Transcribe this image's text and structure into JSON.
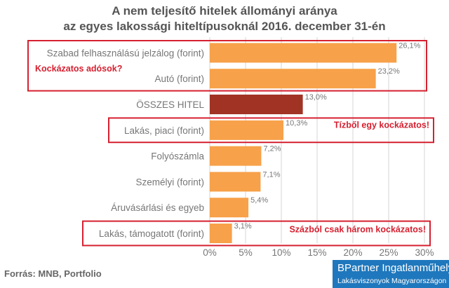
{
  "title_line1": "A nem teljesítő hitelek állományi aránya",
  "title_line2": "az egyes lakossági hiteltípusoknál 2016. december 31-én",
  "source": "Forrás: MNB, Portfolio",
  "brand": {
    "name": "BPartner Ingatlanműhely",
    "tagline": "Lakásviszonyok Magyarországon"
  },
  "colors": {
    "bar": "#f7a14a",
    "highlight_bar": "#a13324",
    "box": "#d62030",
    "annotation": "#d62030",
    "grid": "#d6d6d6",
    "text": "#777777"
  },
  "annotations": [
    {
      "text": "Kockázatos adósok?",
      "category": "Szabad felhasználású jelzálog (forint)"
    },
    {
      "text": "Tízből egy kockázatos!",
      "category": "Lakás, piaci (forint)"
    },
    {
      "text": "Százból csak három kockázatos!",
      "category": "Lakás, támogatott (forint)"
    }
  ],
  "chart_data": {
    "type": "bar",
    "orientation": "horizontal",
    "categories": [
      "Szabad felhasználású jelzálog (forint)",
      "Autó (forint)",
      "ÖSSZES HITEL",
      "Lakás, piaci (forint)",
      "Folyószámla",
      "Személyi (forint)",
      "Áruvásárlási és egyeb",
      "Lakás, támogatott (forint)"
    ],
    "values": [
      26.1,
      23.2,
      13.0,
      10.3,
      7.2,
      7.1,
      5.4,
      3.1
    ],
    "value_labels": [
      "26,1%",
      "23,2%",
      "13,0%",
      "10,3%",
      "7,2%",
      "7,1%",
      "5,4%",
      "3,1%"
    ],
    "highlight_index": 2,
    "xlim": [
      0,
      30
    ],
    "xticks": [
      0,
      5,
      10,
      15,
      20,
      25,
      30
    ],
    "xtick_labels": [
      "0%",
      "5%",
      "10%",
      "15%",
      "20%",
      "25%",
      "30%"
    ],
    "grid": "vertical",
    "boxed_groups": [
      [
        0,
        1
      ],
      [
        3
      ],
      [
        7
      ]
    ]
  }
}
